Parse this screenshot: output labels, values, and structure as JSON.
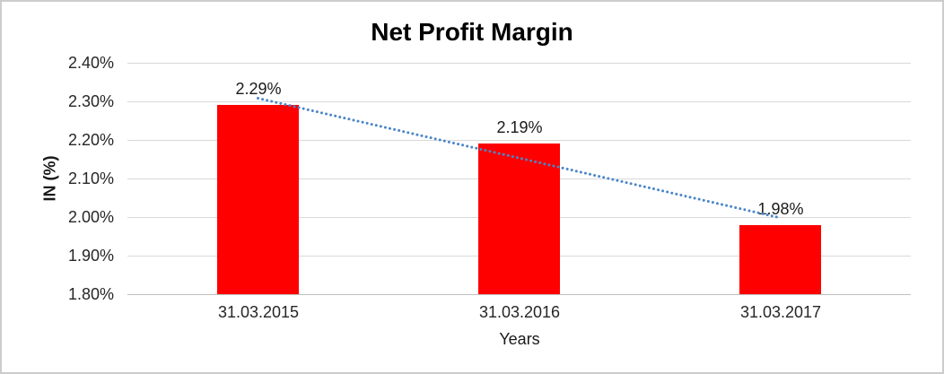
{
  "chart_data": {
    "type": "bar",
    "title": "Net Profit Margin",
    "xlabel": "Years",
    "ylabel": "IN (%)",
    "categories": [
      "31.03.2015",
      "31.03.2016",
      "31.03.2017"
    ],
    "values": [
      2.29,
      2.19,
      1.98
    ],
    "data_labels": [
      "2.29%",
      "2.19%",
      "1.98%"
    ],
    "y_ticks": [
      "2.40%",
      "2.30%",
      "2.20%",
      "2.10%",
      "2.00%",
      "1.90%",
      "1.80%"
    ],
    "y_tick_values": [
      2.4,
      2.3,
      2.2,
      2.1,
      2.0,
      1.9,
      1.8
    ],
    "ylim": [
      1.8,
      2.4
    ],
    "grid": true,
    "legend": false,
    "bar_color": "#ff0000",
    "trendline": {
      "style": "dotted",
      "color": "#4a86c8",
      "points": [
        [
          0,
          2.308
        ],
        [
          2,
          1.998
        ]
      ]
    }
  }
}
